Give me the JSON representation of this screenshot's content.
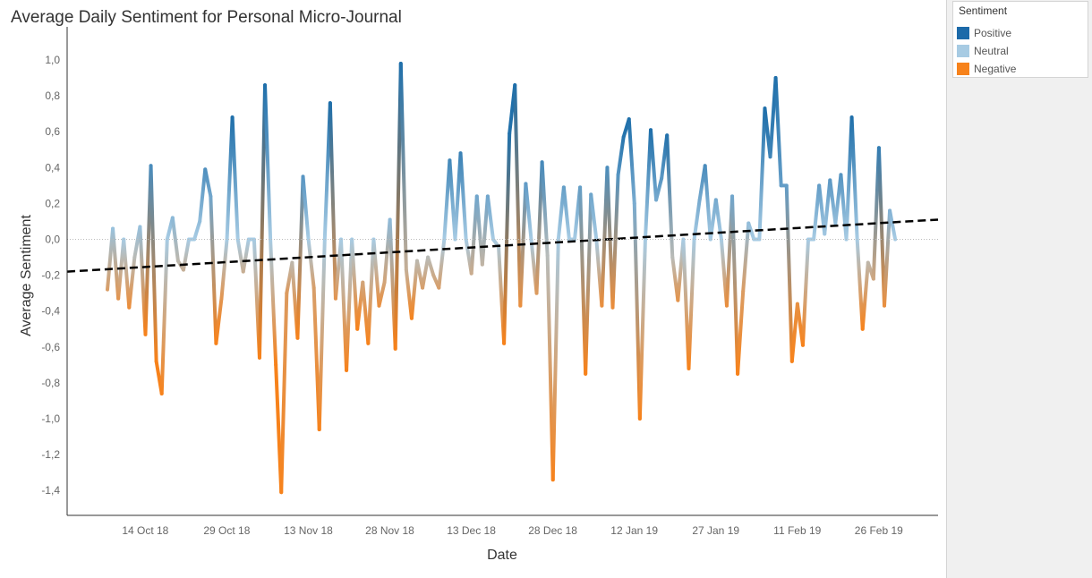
{
  "chart_data": {
    "type": "line",
    "title": "Average Daily Sentiment for Personal Micro-Journal",
    "xlabel": "Date",
    "ylabel": "Average Sentiment",
    "xtick_labels": [
      "14 Oct 18",
      "29 Oct 18",
      "13 Nov 18",
      "28 Nov 18",
      "13 Dec 18",
      "28 Dec 18",
      "12 Jan 19",
      "27 Jan 19",
      "11 Feb 19",
      "26 Feb 19"
    ],
    "ytick_labels": [
      "1,0",
      "0,8",
      "0,6",
      "0,4",
      "0,2",
      "0,0",
      "-0,2",
      "-0,4",
      "-0,6",
      "-0,8",
      "-1,0",
      "-1,2",
      "-1,4"
    ],
    "ylim": [
      -1.5,
      1.05
    ],
    "x_unit": "day",
    "series": [
      {
        "values": [
          -0.28,
          0.06,
          -0.33,
          0.0,
          -0.38,
          -0.1,
          0.07,
          -0.53,
          0.41,
          -0.68,
          -0.86,
          0.0,
          0.12,
          -0.12,
          -0.17,
          0.0,
          0.0,
          0.1,
          0.39,
          0.24,
          -0.58,
          -0.33,
          0.0,
          0.68,
          0.0,
          -0.18,
          0.0,
          0.0,
          -0.66,
          0.86,
          0.0,
          -0.7,
          -1.41,
          -0.3,
          -0.13,
          -0.55,
          0.35,
          0.0,
          -0.27,
          -1.06,
          0.0,
          0.76,
          -0.33,
          0.0,
          -0.73,
          0.0,
          -0.5,
          -0.24,
          -0.58,
          0.0,
          -0.37,
          -0.24,
          0.11,
          -0.61,
          0.98,
          -0.17,
          -0.44,
          -0.12,
          -0.27,
          -0.1,
          -0.2,
          -0.27,
          0.0,
          0.44,
          0.0,
          0.48,
          0.0,
          -0.19,
          0.24,
          -0.14,
          0.24,
          0.0,
          -0.04,
          -0.58,
          0.59,
          0.86,
          -0.37,
          0.31,
          0.0,
          -0.3,
          0.43,
          -0.09,
          -1.34,
          0.0,
          0.29,
          0.0,
          0.0,
          0.29,
          -0.75,
          0.25,
          0.0,
          -0.37,
          0.4,
          -0.38,
          0.36,
          0.57,
          0.67,
          0.2,
          -1.0,
          0.0,
          0.61,
          0.22,
          0.34,
          0.58,
          -0.1,
          -0.34,
          0.0,
          -0.72,
          0.0,
          0.22,
          0.41,
          0.0,
          0.22,
          0.0,
          -0.37,
          0.24,
          -0.75,
          -0.29,
          0.09,
          0.0,
          0.0,
          0.73,
          0.46,
          0.9,
          0.3,
          0.3,
          -0.68,
          -0.36,
          -0.59,
          0.0,
          0.0,
          0.3,
          0.03,
          0.33,
          0.09,
          0.36,
          0.0,
          0.68,
          0.0,
          -0.5,
          -0.13,
          -0.22,
          0.51,
          -0.37,
          0.16,
          0.0
        ],
        "first_point_day_offset": 0,
        "first_tick_day_offset": 5
      }
    ],
    "trend_line": {
      "style": "dashed",
      "color": "#000000",
      "start_value": -0.18,
      "end_value": 0.11
    },
    "color_scale": {
      "positive": "#1f6faa",
      "neutral": "#a7cbe3",
      "negative": "#f7821b"
    },
    "zero_reference_line": true,
    "grid": false,
    "legend": {
      "title": "Sentiment",
      "position": "right",
      "items": [
        "Positive",
        "Neutral",
        "Negative"
      ]
    }
  },
  "legend": {
    "title": "Sentiment",
    "items": [
      {
        "label": "Positive",
        "color": "#1c6aa9"
      },
      {
        "label": "Neutral",
        "color": "#a7cbe3"
      },
      {
        "label": "Negative",
        "color": "#f7821b"
      }
    ]
  }
}
